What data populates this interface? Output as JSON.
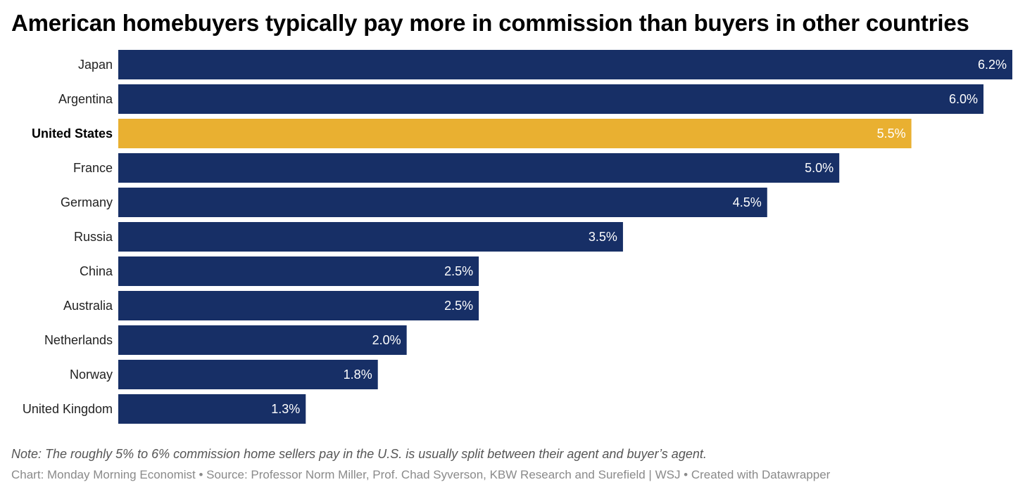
{
  "chart_data": {
    "type": "bar",
    "orientation": "horizontal",
    "title": "American homebuyers typically pay more in commission than buyers in other countries",
    "categories": [
      "Japan",
      "Argentina",
      "United States",
      "France",
      "Germany",
      "Russia",
      "China",
      "Australia",
      "Netherlands",
      "Norway",
      "United Kingdom"
    ],
    "values": [
      6.2,
      6.0,
      5.5,
      5.0,
      4.5,
      3.5,
      2.5,
      2.5,
      2.0,
      1.8,
      1.3
    ],
    "value_labels": [
      "6.2%",
      "6.0%",
      "5.5%",
      "5.0%",
      "4.5%",
      "3.5%",
      "2.5%",
      "2.5%",
      "2.0%",
      "1.8%",
      "1.3%"
    ],
    "highlight": "United States",
    "xlabel": "",
    "ylabel": "",
    "xlim": [
      0,
      6.2
    ],
    "grid": false,
    "colors": {
      "default": "#172f66",
      "highlight": "#e9b031"
    }
  },
  "note": "Note: The roughly 5% to 6% commission home sellers pay in the U.S. is usually split between their agent and buyer’s agent.",
  "credit": "Chart: Monday Morning Economist • Source: Professor Norm Miller, Prof. Chad Syverson, KBW Research and Surefield | WSJ • Created with Datawrapper"
}
